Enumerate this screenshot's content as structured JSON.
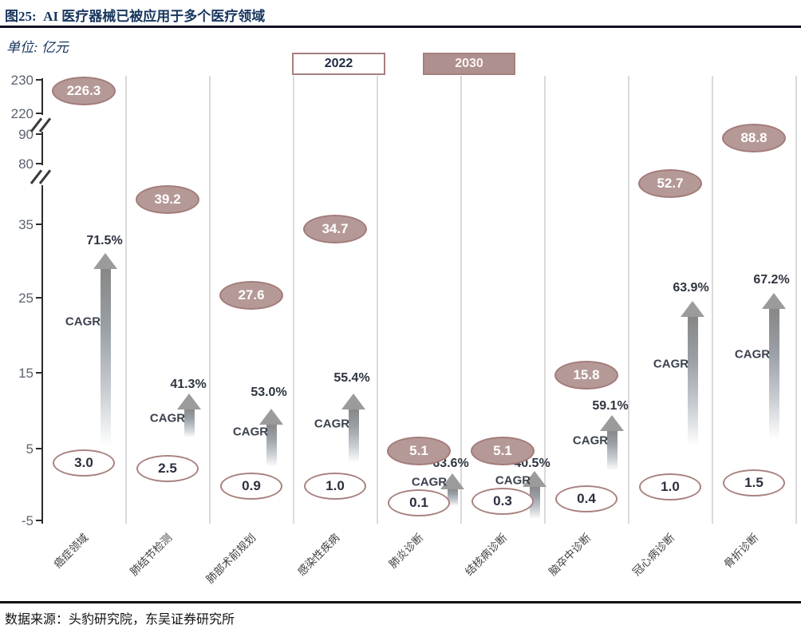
{
  "figure": {
    "title": "图25:  AI 医疗器械已被应用于多个医疗领域",
    "unit_label": "单位: 亿元",
    "source": "数据来源：头豹研究院，东吴证券研究所"
  },
  "legend": {
    "series_2022": "2022",
    "series_2030": "2030"
  },
  "colors": {
    "accent_mauve_fill": "#b59997",
    "accent_mauve_border": "#a27c7a",
    "title_navy": "#17365d",
    "tick_label_gray": "#5c6370",
    "gridline_gray": "#dadada",
    "arrow_gray": "#9b9b9b"
  },
  "y_axis": {
    "tick_labels": [
      "230",
      "220",
      "90",
      "80",
      "35",
      "25",
      "15",
      "5",
      "-5"
    ],
    "has_breaks": true,
    "breaks_after": [
      "220",
      "80"
    ]
  },
  "chart_data": {
    "type": "bar",
    "title": "AI 医疗器械已被应用于多个医疗领域",
    "ylabel": "亿元",
    "legend_position": "top",
    "grid": "vertical-separators",
    "categories": [
      "癌症领域",
      "肺结节检测",
      "肺部术前规划",
      "感染性疾病",
      "肺炎诊断",
      "结核病诊断",
      "脑卒中诊断",
      "冠心病诊断",
      "骨折诊断"
    ],
    "series": [
      {
        "name": "2022",
        "values": [
          3.0,
          2.5,
          0.9,
          1.0,
          0.1,
          0.3,
          0.4,
          1.0,
          1.5
        ],
        "display": [
          "3.0",
          "2.5",
          "0.9",
          "1.0",
          "0.1",
          "0.3",
          "0.4",
          "1.0",
          "1.5"
        ]
      },
      {
        "name": "2030",
        "values": [
          226.3,
          39.2,
          27.6,
          34.7,
          5.1,
          5.1,
          15.8,
          52.7,
          88.8
        ],
        "display": [
          "226.3",
          "39.2",
          "27.6",
          "34.7",
          "5.1",
          "5.1",
          "15.8",
          "52.7",
          "88.8"
        ]
      }
    ],
    "cagr_prefix": "CAGR",
    "cagr_labels": [
      "71.5%",
      "41.3%",
      "53.0%",
      "55.4%",
      "63.6%",
      "40.5%",
      "59.1%",
      "63.9%",
      "67.2%"
    ],
    "y_axis_segments": [
      [
        -5,
        35
      ],
      [
        80,
        90
      ],
      [
        220,
        230
      ]
    ]
  }
}
